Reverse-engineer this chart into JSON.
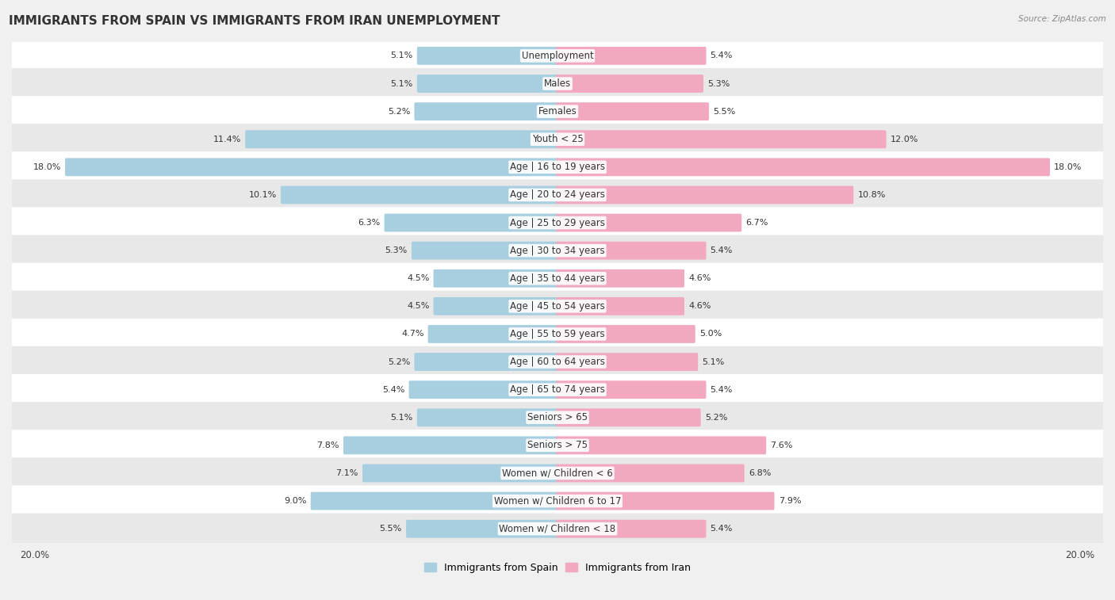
{
  "title": "IMMIGRANTS FROM SPAIN VS IMMIGRANTS FROM IRAN UNEMPLOYMENT",
  "source": "Source: ZipAtlas.com",
  "categories": [
    "Unemployment",
    "Males",
    "Females",
    "Youth < 25",
    "Age | 16 to 19 years",
    "Age | 20 to 24 years",
    "Age | 25 to 29 years",
    "Age | 30 to 34 years",
    "Age | 35 to 44 years",
    "Age | 45 to 54 years",
    "Age | 55 to 59 years",
    "Age | 60 to 64 years",
    "Age | 65 to 74 years",
    "Seniors > 65",
    "Seniors > 75",
    "Women w/ Children < 6",
    "Women w/ Children 6 to 17",
    "Women w/ Children < 18"
  ],
  "spain_values": [
    5.1,
    5.1,
    5.2,
    11.4,
    18.0,
    10.1,
    6.3,
    5.3,
    4.5,
    4.5,
    4.7,
    5.2,
    5.4,
    5.1,
    7.8,
    7.1,
    9.0,
    5.5
  ],
  "iran_values": [
    5.4,
    5.3,
    5.5,
    12.0,
    18.0,
    10.8,
    6.7,
    5.4,
    4.6,
    4.6,
    5.0,
    5.1,
    5.4,
    5.2,
    7.6,
    6.8,
    7.9,
    5.4
  ],
  "spain_color": "#a8cfe0",
  "iran_color": "#f2a8bf",
  "axis_max": 20.0,
  "background_color": "#f0f0f0",
  "row_color_even": "#ffffff",
  "row_color_odd": "#e8e8e8",
  "title_fontsize": 11,
  "label_fontsize": 8.5,
  "value_fontsize": 8,
  "legend_fontsize": 9
}
